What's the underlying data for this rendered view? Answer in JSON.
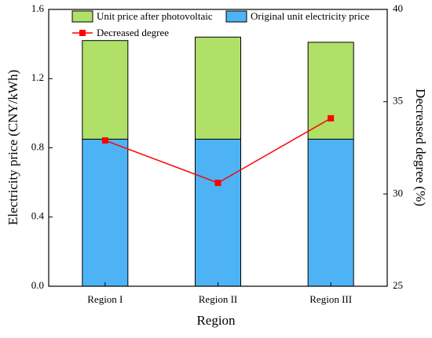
{
  "chart_data": {
    "type": "bar",
    "stacked": true,
    "xlabel": "Region",
    "ylabel": "Electricity price (CNY/kWh)",
    "y2label": "Decreased degree (%)",
    "categories": [
      "Region I",
      "Region II",
      "Region III"
    ],
    "series": [
      {
        "name": "Original unit electricity price",
        "color": "#4db3f5",
        "values": [
          0.85,
          0.85,
          0.85
        ]
      },
      {
        "name": "Unit price after photovoltaic",
        "color": "#b0e068",
        "values": [
          0.57,
          0.59,
          0.56
        ]
      },
      {
        "name": "Decreased degree",
        "color": "#ff0000",
        "type": "line",
        "axis": "y2",
        "values": [
          32.9,
          30.6,
          34.1
        ]
      }
    ],
    "ylim": [
      0,
      1.6
    ],
    "yticks": [
      {
        "value": 0,
        "label": "0.0"
      },
      0.4,
      0.8,
      1.2,
      1.6
    ],
    "y2lim": [
      25,
      40
    ],
    "y2ticks": [
      25,
      30,
      35,
      40
    ]
  }
}
